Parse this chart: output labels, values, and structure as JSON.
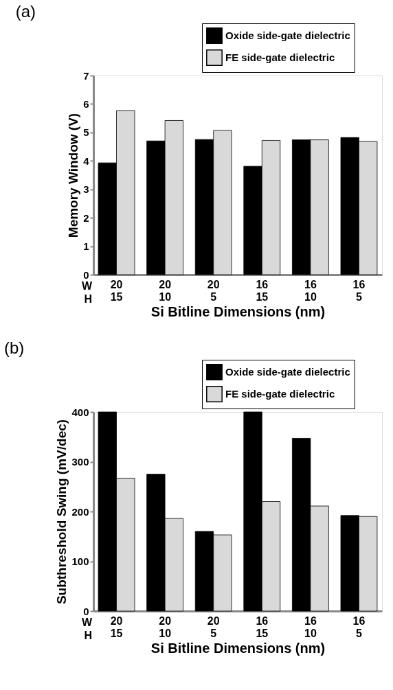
{
  "chart_data": [
    {
      "type": "bar",
      "title": "(a)",
      "xlabel": "Si Bitline Dimensions (nm)",
      "ylabel": "Memory Window (V)",
      "categories": [
        "20\n15",
        "20\n10",
        "20\n5",
        "16\n15",
        "16\n10",
        "16\n5"
      ],
      "series": [
        {
          "name": "Oxide side-gate dielectric",
          "color": "#000000",
          "values": [
            3.93,
            4.7,
            4.75,
            3.81,
            4.74,
            4.82
          ]
        },
        {
          "name": "FE side-gate dielectric",
          "color": "#d9d9d9",
          "values": [
            5.77,
            5.42,
            5.07,
            4.72,
            4.74,
            4.68
          ]
        }
      ],
      "ylim": [
        0,
        7
      ],
      "yticks": [
        0,
        1,
        2,
        3,
        4,
        5,
        6,
        7
      ],
      "grid": false,
      "legend": "top right",
      "annotations": [
        "W",
        "H"
      ]
    },
    {
      "type": "bar",
      "title": "(b)",
      "xlabel": "Si Bitline Dimensions (nm)",
      "ylabel": "Subthreshold Swing (mV/dec)",
      "categories": [
        "20\n15",
        "20\n10",
        "20\n5",
        "16\n15",
        "16\n10",
        "16\n5"
      ],
      "series": [
        {
          "name": "Oxide side-gate dielectric",
          "color": "#000000",
          "values": [
            400,
            275,
            160,
            400,
            347,
            192
          ]
        },
        {
          "name": "FE side-gate dielectric",
          "color": "#d9d9d9",
          "values": [
            267,
            186,
            153,
            220,
            211,
            190
          ]
        }
      ],
      "ylim": [
        0,
        400
      ],
      "yticks": [
        0,
        100,
        200,
        300,
        400
      ],
      "grid": false,
      "legend": "top right",
      "annotations": [
        "W",
        "H"
      ]
    }
  ]
}
